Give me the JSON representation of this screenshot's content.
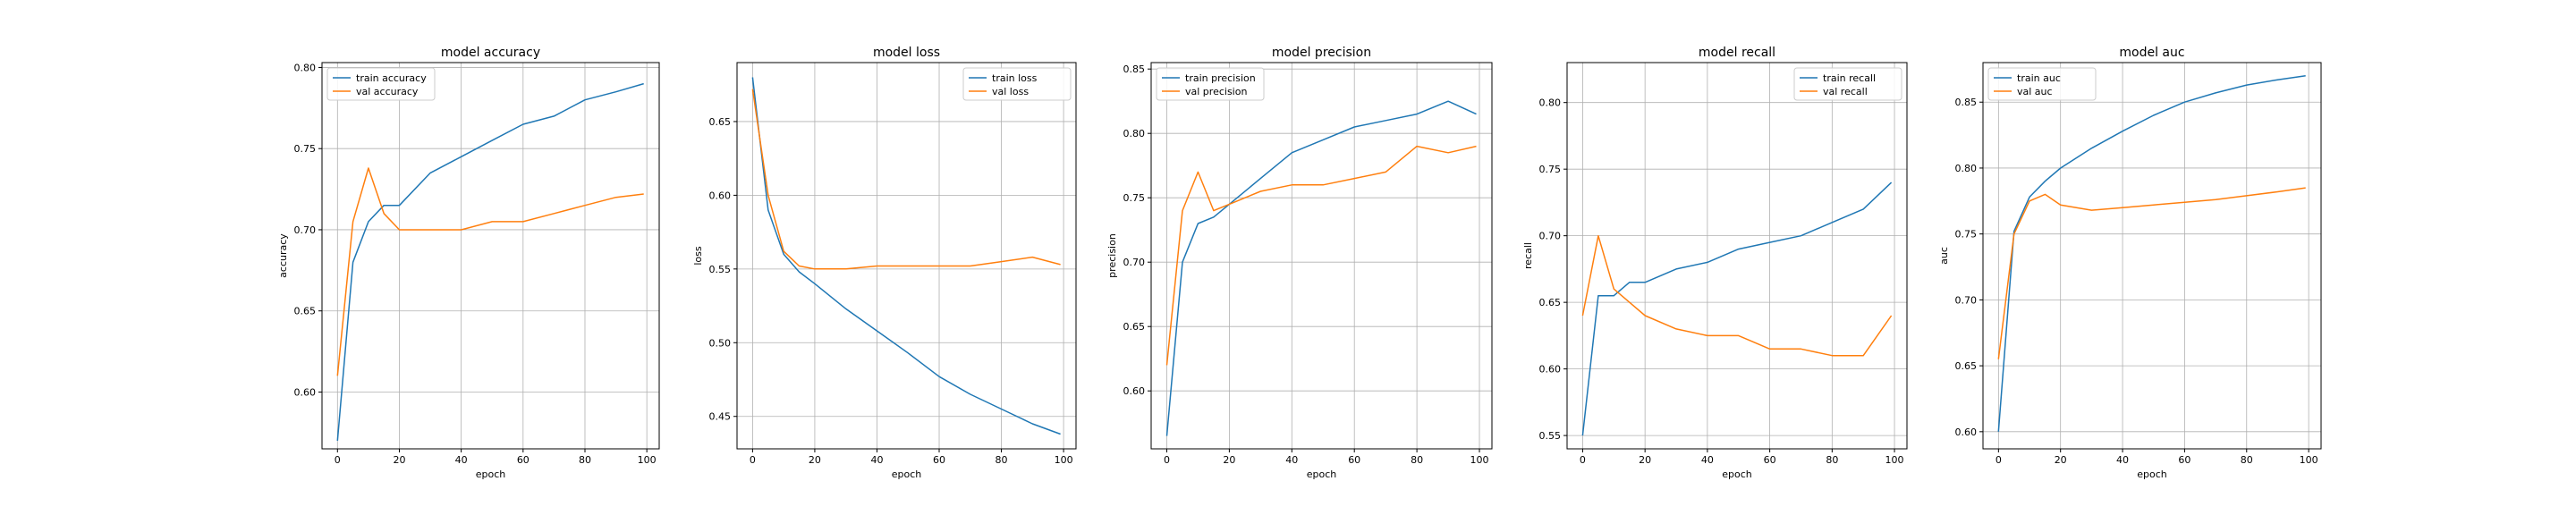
{
  "chart_data": [
    {
      "type": "line",
      "title": "model accuracy",
      "xlabel": "epoch",
      "ylabel": "accuracy",
      "xlim": [
        -5,
        104
      ],
      "ylim": [
        0.565,
        0.803
      ],
      "xticks": [
        0,
        20,
        40,
        60,
        80,
        100
      ],
      "yticks": [
        0.6,
        0.65,
        0.7,
        0.75,
        0.8
      ],
      "xtick_labels": [
        "0",
        "20",
        "40",
        "60",
        "80",
        "100"
      ],
      "ytick_labels": [
        "0.60",
        "0.65",
        "0.70",
        "0.75",
        "0.80"
      ],
      "grid": true,
      "legend_position": "top-left",
      "x": [
        0,
        5,
        10,
        15,
        20,
        30,
        40,
        50,
        60,
        70,
        80,
        90,
        99
      ],
      "series": [
        {
          "name": "train accuracy",
          "color": "#1f77b4",
          "values": [
            0.57,
            0.68,
            0.705,
            0.715,
            0.715,
            0.735,
            0.745,
            0.755,
            0.765,
            0.77,
            0.78,
            0.785,
            0.79
          ]
        },
        {
          "name": "val accuracy",
          "color": "#ff7f0e",
          "values": [
            0.61,
            0.705,
            0.738,
            0.71,
            0.7,
            0.7,
            0.7,
            0.705,
            0.705,
            0.71,
            0.715,
            0.72,
            0.722
          ]
        }
      ]
    },
    {
      "type": "line",
      "title": "model loss",
      "xlabel": "epoch",
      "ylabel": "loss",
      "xlim": [
        -5,
        104
      ],
      "ylim": [
        0.428,
        0.69
      ],
      "xticks": [
        0,
        20,
        40,
        60,
        80,
        100
      ],
      "yticks": [
        0.45,
        0.5,
        0.55,
        0.6,
        0.65
      ],
      "xtick_labels": [
        "0",
        "20",
        "40",
        "60",
        "80",
        "100"
      ],
      "ytick_labels": [
        "0.45",
        "0.50",
        "0.55",
        "0.60",
        "0.65"
      ],
      "grid": true,
      "legend_position": "top-right",
      "x": [
        0,
        5,
        10,
        15,
        20,
        30,
        40,
        50,
        60,
        70,
        80,
        90,
        99
      ],
      "series": [
        {
          "name": "train loss",
          "color": "#1f77b4",
          "values": [
            0.68,
            0.59,
            0.56,
            0.548,
            0.54,
            0.523,
            0.508,
            0.493,
            0.477,
            0.465,
            0.455,
            0.445,
            0.438
          ]
        },
        {
          "name": "val loss",
          "color": "#ff7f0e",
          "values": [
            0.672,
            0.6,
            0.562,
            0.552,
            0.55,
            0.55,
            0.552,
            0.552,
            0.552,
            0.552,
            0.555,
            0.558,
            0.553
          ]
        }
      ]
    },
    {
      "type": "line",
      "title": "model precision",
      "xlabel": "epoch",
      "ylabel": "precision",
      "xlim": [
        -5,
        104
      ],
      "ylim": [
        0.555,
        0.855
      ],
      "xticks": [
        0,
        20,
        40,
        60,
        80,
        100
      ],
      "yticks": [
        0.6,
        0.65,
        0.7,
        0.75,
        0.8,
        0.85
      ],
      "xtick_labels": [
        "0",
        "20",
        "40",
        "60",
        "80",
        "100"
      ],
      "ytick_labels": [
        "0.60",
        "0.65",
        "0.70",
        "0.75",
        "0.80",
        "0.85"
      ],
      "grid": true,
      "legend_position": "top-left",
      "x": [
        0,
        5,
        10,
        15,
        20,
        30,
        40,
        50,
        60,
        70,
        80,
        90,
        99
      ],
      "series": [
        {
          "name": "train precision",
          "color": "#1f77b4",
          "values": [
            0.565,
            0.7,
            0.73,
            0.735,
            0.745,
            0.765,
            0.785,
            0.795,
            0.805,
            0.81,
            0.815,
            0.825,
            0.815
          ]
        },
        {
          "name": "val precision",
          "color": "#ff7f0e",
          "values": [
            0.62,
            0.74,
            0.77,
            0.74,
            0.745,
            0.755,
            0.76,
            0.76,
            0.765,
            0.77,
            0.79,
            0.785,
            0.79
          ]
        }
      ]
    },
    {
      "type": "line",
      "title": "model recall",
      "xlabel": "epoch",
      "ylabel": "recall",
      "xlim": [
        -5,
        104
      ],
      "ylim": [
        0.54,
        0.83
      ],
      "xticks": [
        0,
        20,
        40,
        60,
        80,
        100
      ],
      "yticks": [
        0.55,
        0.6,
        0.65,
        0.7,
        0.75,
        0.8
      ],
      "xtick_labels": [
        "0",
        "20",
        "40",
        "60",
        "80",
        "100"
      ],
      "ytick_labels": [
        "0.55",
        "0.60",
        "0.65",
        "0.70",
        "0.75",
        "0.80"
      ],
      "grid": true,
      "legend_position": "top-right",
      "x": [
        0,
        5,
        10,
        15,
        20,
        30,
        40,
        50,
        60,
        70,
        80,
        90,
        99
      ],
      "series": [
        {
          "name": "train recall",
          "color": "#1f77b4",
          "values": [
            0.55,
            0.655,
            0.655,
            0.665,
            0.665,
            0.675,
            0.68,
            0.69,
            0.695,
            0.7,
            0.71,
            0.72,
            0.74
          ]
        },
        {
          "name": "val recall",
          "color": "#ff7f0e",
          "values": [
            0.64,
            0.7,
            0.66,
            0.65,
            0.64,
            0.63,
            0.625,
            0.625,
            0.615,
            0.615,
            0.61,
            0.61,
            0.64
          ]
        }
      ]
    },
    {
      "type": "line",
      "title": "model auc",
      "xlabel": "epoch",
      "ylabel": "auc",
      "xlim": [
        -5,
        104
      ],
      "ylim": [
        0.587,
        0.88
      ],
      "xticks": [
        0,
        20,
        40,
        60,
        80,
        100
      ],
      "yticks": [
        0.6,
        0.65,
        0.7,
        0.75,
        0.8,
        0.85
      ],
      "xtick_labels": [
        "0",
        "20",
        "40",
        "60",
        "80",
        "100"
      ],
      "ytick_labels": [
        "0.60",
        "0.65",
        "0.70",
        "0.75",
        "0.80",
        "0.85"
      ],
      "grid": true,
      "legend_position": "top-left",
      "x": [
        0,
        5,
        10,
        15,
        20,
        30,
        40,
        50,
        60,
        70,
        80,
        90,
        99
      ],
      "series": [
        {
          "name": "train auc",
          "color": "#1f77b4",
          "values": [
            0.6,
            0.752,
            0.778,
            0.79,
            0.8,
            0.815,
            0.828,
            0.84,
            0.85,
            0.857,
            0.863,
            0.867,
            0.87
          ]
        },
        {
          "name": "val auc",
          "color": "#ff7f0e",
          "values": [
            0.655,
            0.75,
            0.775,
            0.78,
            0.772,
            0.768,
            0.77,
            0.772,
            0.774,
            0.776,
            0.779,
            0.782,
            0.785
          ]
        }
      ]
    }
  ]
}
